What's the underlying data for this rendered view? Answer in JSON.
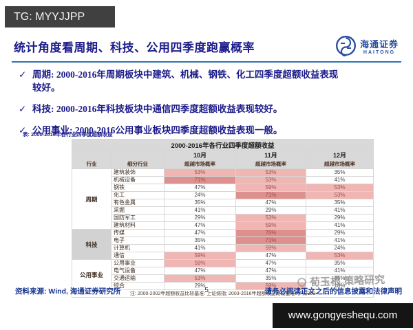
{
  "top_bar": {
    "label": "TG: MYYJJPP"
  },
  "header": {
    "title": "统计角度看周期、科技、公用四季度跑赢概率",
    "logo": {
      "name_cn": "海通证券",
      "name_en": "HAITONG"
    }
  },
  "bullets": [
    {
      "check": "✓",
      "text": "周期: 2000-2016年周期板块中建筑、机械、钢铁、化工四季度超额收益表现较好。"
    },
    {
      "check": "✓",
      "text": "科技: 2000-2016年科技板块中通信四季度超额收益表现较好。"
    },
    {
      "check": "✓",
      "text": "公用事业: 2000-2016公用事业板块四季度超额收益表现一般。"
    }
  ],
  "table_caption": "表: 2000-2016年各行业四季度超额收益",
  "table": {
    "title": "2000-2016年各行业四季度超额收益",
    "headers": {
      "industry": "行业",
      "subindustry": "细分行业",
      "months": [
        "10月",
        "11月",
        "12月"
      ],
      "probability": "超越市场概率"
    },
    "rows": [
      {
        "group": "周期",
        "group_span": 8,
        "group_shaded": false,
        "name": "建筑装饰",
        "oct": "53%",
        "oct_hl": "light",
        "nov": "53%",
        "nov_hl": "light",
        "dec": "35%",
        "dec_hl": null
      },
      {
        "name": "机械设备",
        "oct": "71%",
        "oct_hl": "dark",
        "nov": "53%",
        "nov_hl": "light",
        "dec": "41%",
        "dec_hl": null
      },
      {
        "name": "钢铁",
        "oct": "47%",
        "oct_hl": null,
        "nov": "59%",
        "nov_hl": "light",
        "dec": "53%",
        "dec_hl": "light"
      },
      {
        "name": "化工",
        "oct": "24%",
        "oct_hl": null,
        "nov": "71%",
        "nov_hl": "dark",
        "dec": "53%",
        "dec_hl": "light"
      },
      {
        "name": "有色金属",
        "oct": "35%",
        "oct_hl": null,
        "nov": "47%",
        "nov_hl": null,
        "dec": "35%",
        "dec_hl": null
      },
      {
        "name": "采掘",
        "oct": "41%",
        "oct_hl": null,
        "nov": "29%",
        "nov_hl": null,
        "dec": "41%",
        "dec_hl": null
      },
      {
        "name": "国防军工",
        "oct": "29%",
        "oct_hl": null,
        "nov": "53%",
        "nov_hl": "light",
        "dec": "29%",
        "dec_hl": null
      },
      {
        "name": "建筑材料",
        "oct": "47%",
        "oct_hl": null,
        "nov": "59%",
        "nov_hl": "light",
        "dec": "41%",
        "dec_hl": null
      },
      {
        "group": "科技",
        "group_span": 4,
        "group_shaded": true,
        "name": "传媒",
        "oct": "47%",
        "oct_hl": null,
        "nov": "76%",
        "nov_hl": "dark",
        "dec": "29%",
        "dec_hl": null
      },
      {
        "name": "电子",
        "oct": "35%",
        "oct_hl": null,
        "nov": "71%",
        "nov_hl": "dark",
        "dec": "41%",
        "dec_hl": null
      },
      {
        "name": "计算机",
        "oct": "41%",
        "oct_hl": null,
        "nov": "59%",
        "nov_hl": "light",
        "dec": "24%",
        "dec_hl": null
      },
      {
        "name": "通信",
        "oct": "59%",
        "oct_hl": "light",
        "nov": "47%",
        "nov_hl": null,
        "dec": "53%",
        "dec_hl": "light"
      },
      {
        "group": "公用事业",
        "group_span": 4,
        "group_shaded": false,
        "name": "公用事业",
        "oct": "59%",
        "oct_hl": "light",
        "nov": "47%",
        "nov_hl": null,
        "dec": "35%",
        "dec_hl": null
      },
      {
        "name": "电气设备",
        "oct": "47%",
        "oct_hl": null,
        "nov": "47%",
        "nov_hl": null,
        "dec": "41%",
        "dec_hl": null
      },
      {
        "name": "交通运输",
        "oct": "53%",
        "oct_hl": "light",
        "nov": "35%",
        "nov_hl": null,
        "dec": "35%",
        "dec_hl": null
      },
      {
        "name": "综合",
        "oct": "29%",
        "oct_hl": null,
        "nov": "59%",
        "nov_hl": "light",
        "dec": "18%",
        "dec_hl": null
      }
    ],
    "note": "注: 2000-2002年超额收益比较基准: 上证综指; 2003-2016年超额收益比较基准: 沪深300"
  },
  "footer": {
    "source": "资料来源: Wind, 海通证券研究所",
    "page_number": "5",
    "disclaimer": "请务必阅读正文之后的信息披露和法律声明"
  },
  "watermark": {
    "text": "荀玉根 策略研究"
  },
  "bottom_bar": {
    "url": "www.gongyeshequ.com"
  },
  "colors": {
    "title_navy": "#1c1c8a",
    "rule_blue": "#2e74b5",
    "logo_blue": "#2a4ea0",
    "highlight_light": "#f0b6b4",
    "highlight_dark": "#de908e",
    "header_gray": "#d9d9d9",
    "tg_bar_gray": "#404040",
    "url_bar_black": "#151515"
  }
}
